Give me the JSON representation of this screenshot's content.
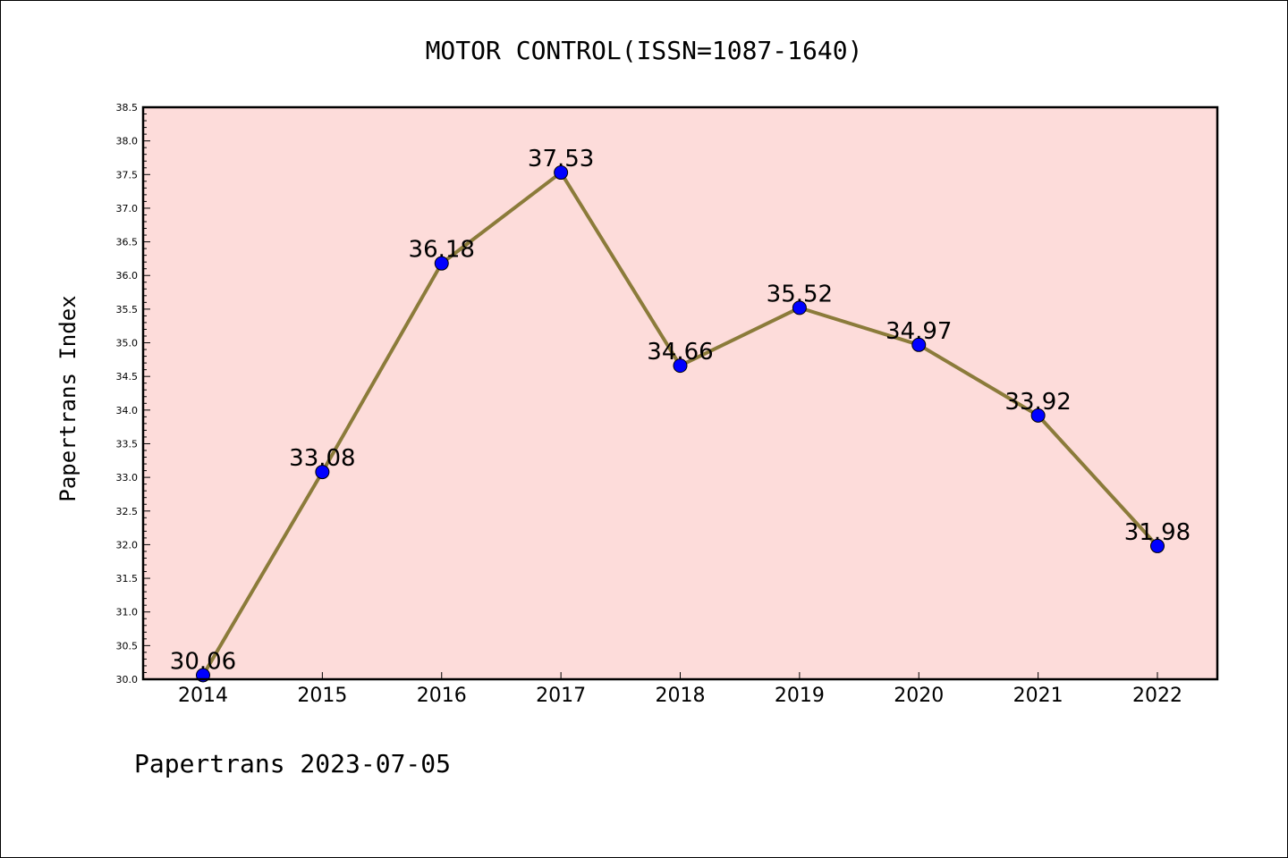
{
  "chart_data": {
    "type": "line",
    "title": "MOTOR CONTROL(ISSN=1087-1640)",
    "xlabel": "",
    "ylabel": "Papertrans Index",
    "categories": [
      "2014",
      "2015",
      "2016",
      "2017",
      "2018",
      "2019",
      "2020",
      "2021",
      "2022"
    ],
    "values": [
      30.06,
      33.08,
      36.18,
      37.53,
      34.66,
      35.52,
      34.97,
      33.92,
      31.98
    ],
    "data_labels": [
      "30.06",
      "33.08",
      "36.18",
      "37.53",
      "34.66",
      "35.52",
      "34.97",
      "33.92",
      "31.98"
    ],
    "ylim": [
      30.0,
      38.5
    ],
    "yticks": [
      "30.0",
      "30.5",
      "31.0",
      "31.5",
      "32.0",
      "32.5",
      "33.0",
      "33.5",
      "34.0",
      "34.5",
      "35.0",
      "35.5",
      "36.0",
      "36.5",
      "37.0",
      "37.5",
      "38.0",
      "38.5"
    ],
    "grid": false,
    "colors": {
      "plot_background": "#fddcda",
      "line": "#8b7b3a",
      "marker": "#0000ff"
    }
  },
  "footer": "Papertrans 2023-07-05"
}
